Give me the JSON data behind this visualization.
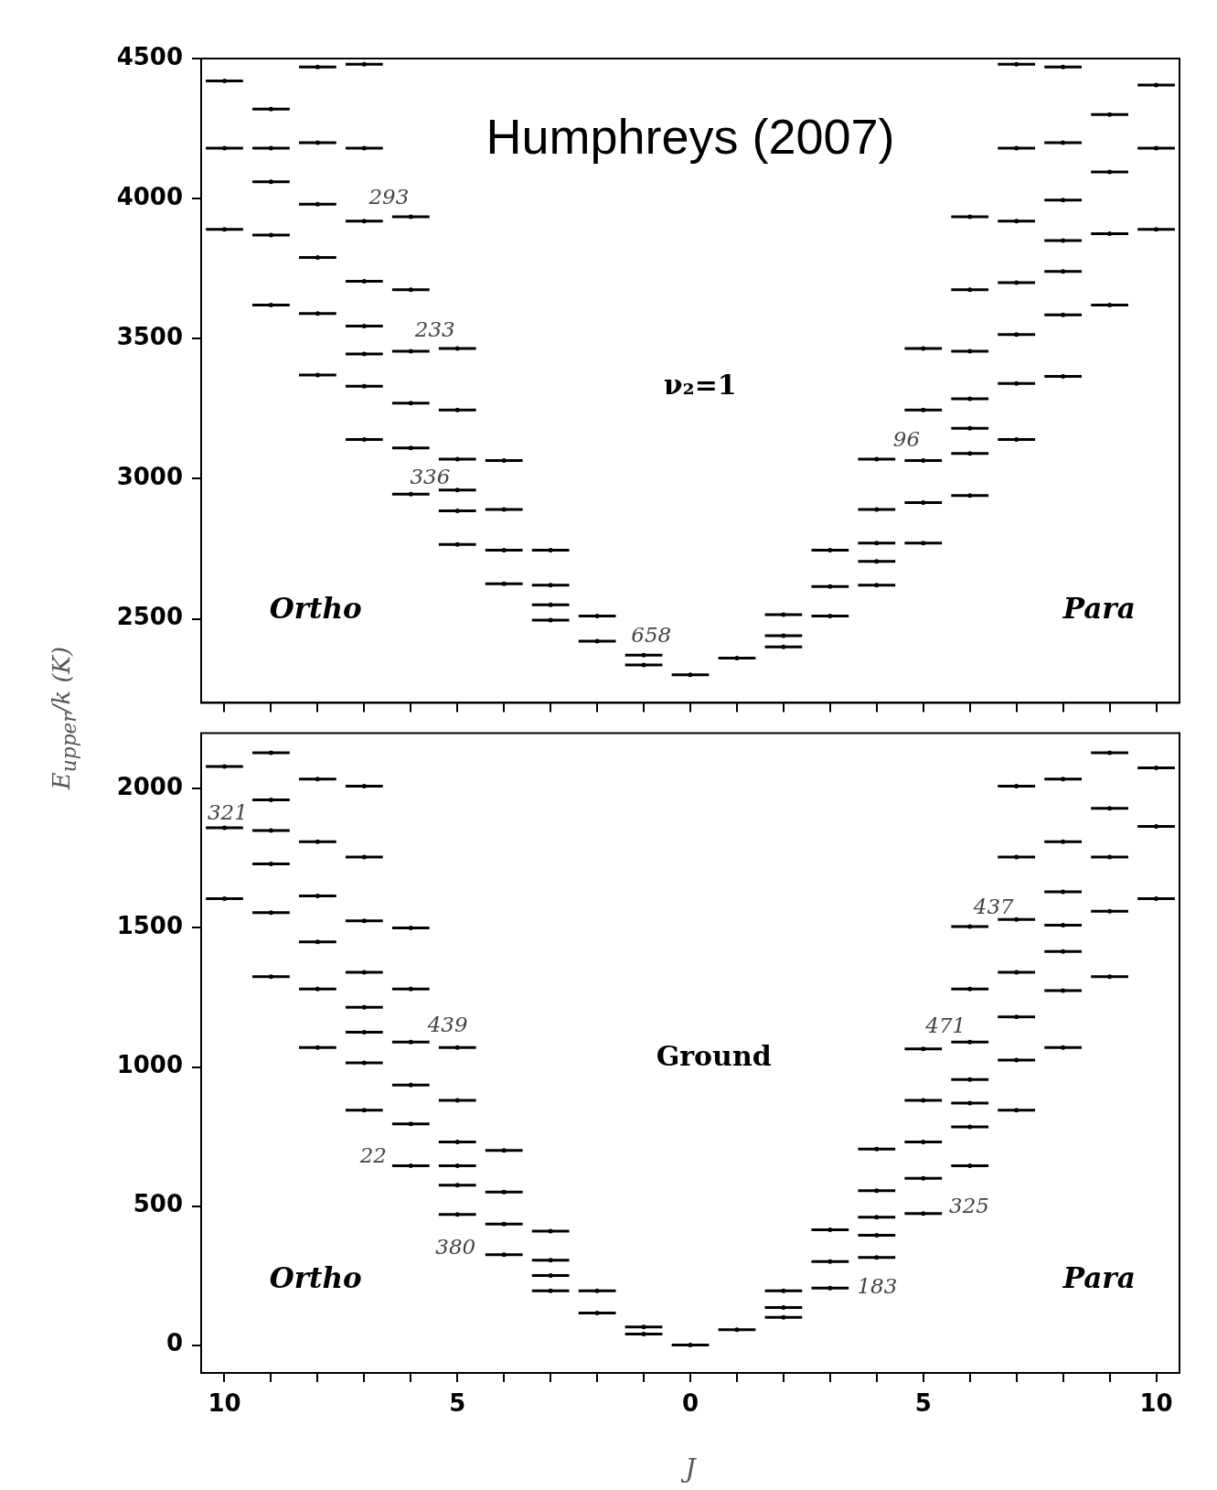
{
  "chart_data": [
    {
      "type": "scatter",
      "title": "Humphreys (2007)",
      "ylabel": "E$_{upper}$/k (K)",
      "xlim": [
        -10.5,
        10.5
      ],
      "xticks": [
        {
          "value": -10,
          "label": null
        },
        {
          "value": -9,
          "label": null
        },
        {
          "value": -8,
          "label": null
        },
        {
          "value": -7,
          "label": null
        },
        {
          "value": -6,
          "label": null
        },
        {
          "value": -5,
          "label": null
        },
        {
          "value": -4,
          "label": null
        },
        {
          "value": -3,
          "label": null
        },
        {
          "value": -2,
          "label": null
        },
        {
          "value": -1,
          "label": null
        },
        {
          "value": 0,
          "label": null
        },
        {
          "value": 1,
          "label": null
        },
        {
          "value": 2,
          "label": null
        },
        {
          "value": 3,
          "label": null
        },
        {
          "value": 4,
          "label": null
        },
        {
          "value": 5,
          "label": null
        },
        {
          "value": 6,
          "label": null
        },
        {
          "value": 7,
          "label": null
        },
        {
          "value": 8,
          "label": null
        },
        {
          "value": 9,
          "label": null
        },
        {
          "value": 10,
          "label": null
        }
      ],
      "ylim": [
        2200,
        4500
      ],
      "yticks": [
        2500,
        3000,
        3500,
        4000,
        4500
      ],
      "grid": false,
      "legend": false,
      "tick_labels": "y",
      "series": [
        {
          "color": "#000000",
          "x": [
            -10,
            -10,
            -10,
            -9,
            -9,
            -9,
            -9,
            -9,
            -8,
            -8,
            -8,
            -8,
            -8,
            -8,
            -7,
            -7,
            -7,
            -7,
            -7,
            -7,
            -7,
            -7,
            -6,
            -6,
            -6,
            -6,
            -6,
            -6,
            -5,
            -5,
            -5,
            -5,
            -5,
            -5,
            -4,
            -4,
            -4,
            -4,
            -3,
            -3,
            -3,
            -3,
            -2,
            -2,
            -1,
            -1,
            0,
            1,
            2,
            2,
            2,
            3,
            3,
            3,
            4,
            4,
            4,
            4,
            4,
            5,
            5,
            5,
            5,
            5,
            6,
            6,
            6,
            6,
            6,
            6,
            6,
            7,
            7,
            7,
            7,
            7,
            7,
            7,
            8,
            8,
            8,
            8,
            8,
            8,
            8,
            9,
            9,
            9,
            9,
            10,
            10,
            10
          ],
          "values": [
            4420,
            4180,
            3890,
            4320,
            4180,
            4060,
            3870,
            3620,
            4470,
            4200,
            3980,
            3790,
            3590,
            3370,
            4480,
            4180,
            3920,
            3705,
            3545,
            3445,
            3330,
            3140,
            3935,
            3675,
            3455,
            3270,
            3110,
            2945,
            3465,
            3245,
            3070,
            2960,
            2885,
            2765,
            3065,
            2890,
            2745,
            2625,
            2745,
            2620,
            2550,
            2495,
            2510,
            2420,
            2370,
            2335,
            2300,
            2360,
            2515,
            2440,
            2400,
            2745,
            2615,
            2510,
            3070,
            2890,
            2770,
            2705,
            2620,
            3465,
            3245,
            3065,
            2915,
            2770,
            3935,
            3675,
            3455,
            3285,
            3180,
            3090,
            2940,
            4480,
            4180,
            3920,
            3700,
            3515,
            3340,
            3140,
            4470,
            4200,
            3995,
            3850,
            3740,
            3585,
            3365,
            4300,
            4095,
            3875,
            3620,
            4405,
            4180,
            3890
          ],
          "xerrors": [
            0.4,
            0.4,
            0.4,
            0.4,
            0.4,
            0.4,
            0.4,
            0.4,
            0.4,
            0.4,
            0.4,
            0.4,
            0.4,
            0.4,
            0.4,
            0.4,
            0.4,
            0.4,
            0.4,
            0.4,
            0.4,
            0.4,
            0.4,
            0.4,
            0.4,
            0.4,
            0.4,
            0.4,
            0.4,
            0.4,
            0.4,
            0.4,
            0.4,
            0.4,
            0.4,
            0.4,
            0.4,
            0.4,
            0.4,
            0.4,
            0.4,
            0.4,
            0.4,
            0.4,
            0.4,
            0.4,
            0.4,
            0.4,
            0.4,
            0.4,
            0.4,
            0.4,
            0.4,
            0.4,
            0.4,
            0.4,
            0.4,
            0.4,
            0.4,
            0.4,
            0.4,
            0.4,
            0.4,
            0.4,
            0.4,
            0.4,
            0.4,
            0.4,
            0.4,
            0.4,
            0.4,
            0.4,
            0.4,
            0.4,
            0.4,
            0.4,
            0.4,
            0.4,
            0.4,
            0.4,
            0.4,
            0.4,
            0.4,
            0.4,
            0.4,
            0.4,
            0.4,
            0.4,
            0.4,
            0.4,
            0.4,
            0.4
          ]
        }
      ],
      "annotations": [
        "ν₂=1",
        "Ortho",
        "Para",
        "293",
        "233",
        "336",
        "658",
        "96"
      ]
    },
    {
      "type": "scatter",
      "xlabel": "J",
      "xlim": [
        -10.5,
        10.5
      ],
      "xticks": [
        {
          "value": -10,
          "label": "10"
        },
        {
          "value": -9,
          "label": null
        },
        {
          "value": -8,
          "label": null
        },
        {
          "value": -7,
          "label": null
        },
        {
          "value": -6,
          "label": null
        },
        {
          "value": -5,
          "label": "5"
        },
        {
          "value": -4,
          "label": null
        },
        {
          "value": -3,
          "label": null
        },
        {
          "value": -2,
          "label": null
        },
        {
          "value": -1,
          "label": null
        },
        0,
        {
          "value": 1,
          "label": null
        },
        {
          "value": 2,
          "label": null
        },
        {
          "value": 3,
          "label": null
        },
        {
          "value": 4,
          "label": null
        },
        5,
        {
          "value": 6,
          "label": null
        },
        {
          "value": 7,
          "label": null
        },
        {
          "value": 8,
          "label": null
        },
        {
          "value": 9,
          "label": null
        },
        10
      ],
      "ylim": [
        -100,
        2200
      ],
      "yticks": [
        0,
        500,
        1000,
        1500,
        2000
      ],
      "grid": false,
      "legend": false,
      "series": [
        {
          "color": "#000000",
          "x": [
            -10,
            -10,
            -10,
            -9,
            -9,
            -9,
            -9,
            -9,
            -9,
            -8,
            -8,
            -8,
            -8,
            -8,
            -8,
            -7,
            -7,
            -7,
            -7,
            -7,
            -7,
            -7,
            -7,
            -6,
            -6,
            -6,
            -6,
            -6,
            -6,
            -5,
            -5,
            -5,
            -5,
            -5,
            -5,
            -4,
            -4,
            -4,
            -4,
            -3,
            -3,
            -3,
            -3,
            -2,
            -2,
            -1,
            -1,
            0,
            1,
            2,
            2,
            2,
            3,
            3,
            3,
            4,
            4,
            4,
            4,
            4,
            5,
            5,
            5,
            5,
            5,
            6,
            6,
            6,
            6,
            6,
            6,
            6,
            7,
            7,
            7,
            7,
            7,
            7,
            7,
            8,
            8,
            8,
            8,
            8,
            8,
            8,
            9,
            9,
            9,
            9,
            9,
            10,
            10,
            10
          ],
          "values": [
            2080,
            1860,
            1605,
            2130,
            1960,
            1850,
            1730,
            1555,
            1325,
            2035,
            1810,
            1615,
            1450,
            1280,
            1070,
            2010,
            1755,
            1525,
            1340,
            1215,
            1125,
            1015,
            845,
            1500,
            1280,
            1090,
            935,
            795,
            645,
            1070,
            880,
            730,
            645,
            575,
            470,
            700,
            550,
            435,
            325,
            410,
            305,
            250,
            195,
            195,
            115,
            65,
            40,
            0,
            55,
            195,
            135,
            100,
            415,
            300,
            205,
            705,
            555,
            460,
            395,
            315,
            1065,
            880,
            730,
            600,
            473,
            1505,
            1280,
            1090,
            955,
            870,
            785,
            645,
            2010,
            1755,
            1530,
            1340,
            1180,
            1025,
            845,
            2035,
            1810,
            1630,
            1510,
            1415,
            1275,
            1070,
            2130,
            1930,
            1755,
            1560,
            1325,
            2075,
            1865,
            1605
          ],
          "xerrors": [
            0.4,
            0.4,
            0.4,
            0.4,
            0.4,
            0.4,
            0.4,
            0.4,
            0.4,
            0.4,
            0.4,
            0.4,
            0.4,
            0.4,
            0.4,
            0.4,
            0.4,
            0.4,
            0.4,
            0.4,
            0.4,
            0.4,
            0.4,
            0.4,
            0.4,
            0.4,
            0.4,
            0.4,
            0.4,
            0.4,
            0.4,
            0.4,
            0.4,
            0.4,
            0.4,
            0.4,
            0.4,
            0.4,
            0.4,
            0.4,
            0.4,
            0.4,
            0.4,
            0.4,
            0.4,
            0.4,
            0.4,
            0.4,
            0.4,
            0.4,
            0.4,
            0.4,
            0.4,
            0.4,
            0.4,
            0.4,
            0.4,
            0.4,
            0.4,
            0.4,
            0.4,
            0.4,
            0.4,
            0.4,
            0.4,
            0.4,
            0.4,
            0.4,
            0.4,
            0.4,
            0.4,
            0.4,
            0.4,
            0.4,
            0.4,
            0.4,
            0.4,
            0.4,
            0.4,
            0.4,
            0.4,
            0.4,
            0.4,
            0.4,
            0.4,
            0.4,
            0.4,
            0.4,
            0.4,
            0.4,
            0.4,
            0.4,
            0.4,
            0.4
          ]
        }
      ],
      "annotations": [
        "Ground",
        "Ortho",
        "Para",
        "321",
        "439",
        "22",
        "380",
        "183",
        "325",
        "471",
        "437"
      ]
    }
  ]
}
